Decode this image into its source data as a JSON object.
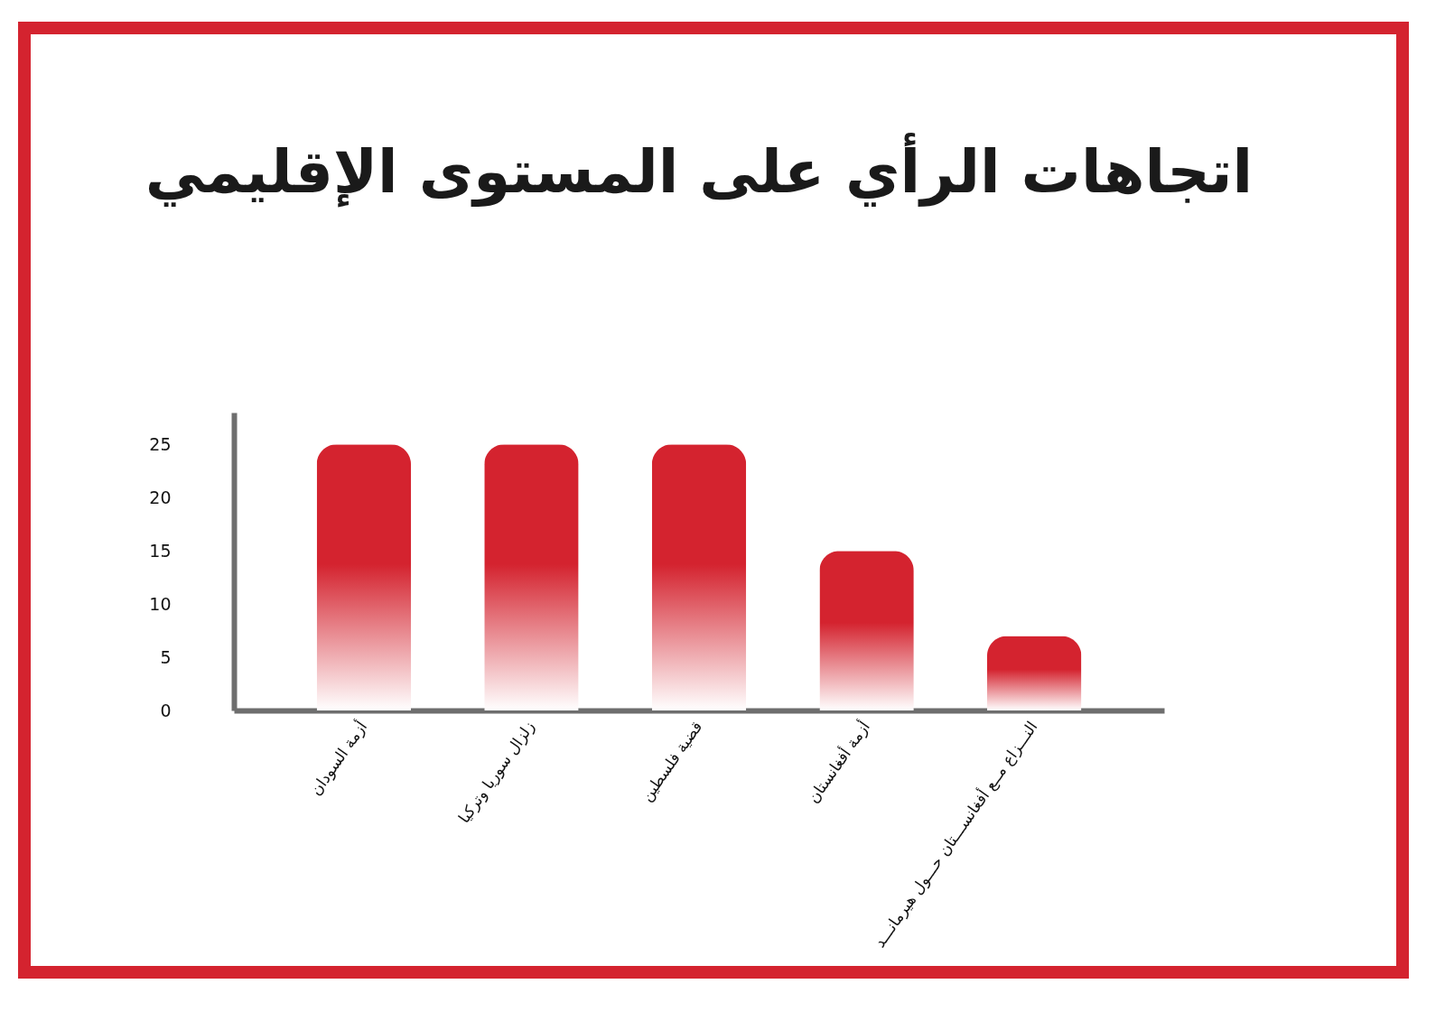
{
  "chart_data": {
    "type": "bar",
    "title": "اتجاهات الرأي على المستوى الإقليمي",
    "categories": [
      "أزمة السودان",
      "زلزال سوريا وتركيا",
      "قضية فلسطين",
      "أزمة أفغانستان",
      "النـــزاع مــع أفغانســـتان حـــول هيرمانـــد"
    ],
    "values": [
      25,
      25,
      25,
      15,
      7
    ],
    "color": "#d4232f",
    "ylim": [
      0,
      28
    ],
    "yticks": [
      0,
      5,
      10,
      15,
      20,
      25
    ],
    "grid": false
  }
}
